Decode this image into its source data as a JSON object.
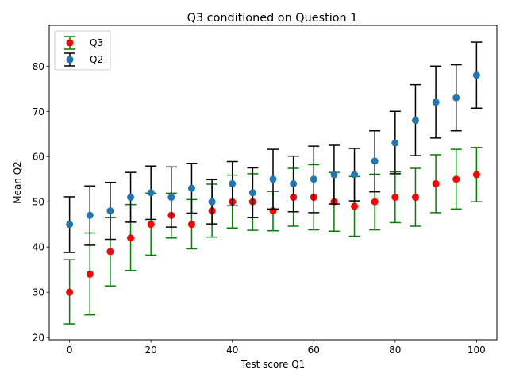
{
  "chart_data": {
    "type": "scatter",
    "title": "Q3 conditioned on Question 1",
    "xlabel": "Test score Q1",
    "ylabel": "Mean Q2",
    "xlim": [
      -5,
      105
    ],
    "ylim": [
      19.5,
      89
    ],
    "xticks": [
      0,
      20,
      40,
      60,
      80,
      100
    ],
    "yticks": [
      20,
      30,
      40,
      50,
      60,
      70,
      80
    ],
    "legend_position": "upper-left",
    "grid": false,
    "x": [
      0,
      5,
      10,
      15,
      20,
      25,
      30,
      35,
      40,
      45,
      50,
      55,
      60,
      65,
      70,
      75,
      80,
      85,
      90,
      95,
      100
    ],
    "series": [
      {
        "name": "Q3",
        "marker_color": "#ff0000",
        "errorbar_color": "#008000",
        "values": [
          30,
          34,
          39,
          42,
          45,
          47,
          45,
          48,
          50,
          50,
          48,
          51,
          51,
          50,
          49,
          50,
          51,
          51,
          54,
          55,
          56
        ],
        "lower": [
          23,
          25,
          31.4,
          34.8,
          38.2,
          42,
          39.6,
          42.2,
          44.2,
          43.7,
          43.6,
          44.6,
          43.8,
          43.5,
          42.4,
          43.8,
          45.4,
          44.6,
          47.6,
          48.4,
          50
        ],
        "upper": [
          37.2,
          43.1,
          46.5,
          49.4,
          51.9,
          51.9,
          50.5,
          53.9,
          55.9,
          56.2,
          52.3,
          57.4,
          58.2,
          56.5,
          55.6,
          56.1,
          56.6,
          57.4,
          60.4,
          61.6,
          62
        ]
      },
      {
        "name": "Q2",
        "marker_color": "#1f77b4",
        "errorbar_color": "#000000",
        "values": [
          45,
          47,
          48,
          51,
          52,
          51,
          53,
          50,
          54,
          52,
          55,
          54,
          55,
          56,
          56,
          59,
          63,
          68,
          72,
          73,
          78
        ],
        "lower": [
          38.8,
          40.4,
          41.7,
          45.5,
          46.1,
          44.4,
          47.5,
          45.1,
          49.1,
          46.5,
          48.4,
          47.8,
          47.6,
          49.5,
          50.2,
          52.2,
          56.2,
          60.2,
          64.1,
          65.7,
          70.7
        ],
        "upper": [
          51.1,
          53.5,
          54.3,
          56.5,
          57.9,
          57.7,
          58.5,
          54.9,
          58.9,
          57.5,
          61.6,
          60.1,
          62.3,
          62.5,
          61.8,
          65.7,
          70,
          75.9,
          80,
          80.3,
          85.3
        ]
      }
    ]
  }
}
